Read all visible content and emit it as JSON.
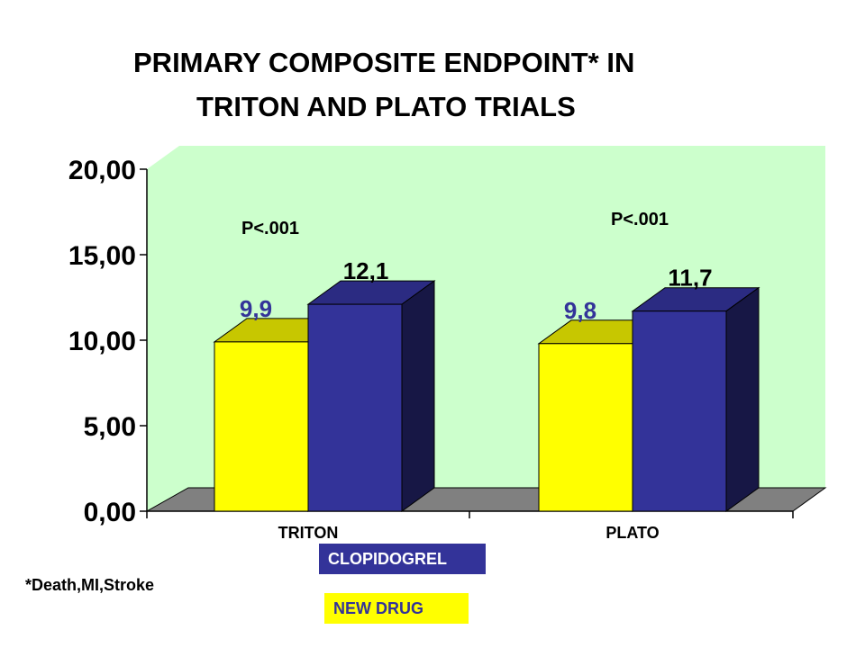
{
  "title_lines": [
    "PRIMARY COMPOSITE ENDPOINT* IN",
    "TRITON AND PLATO TRIALS"
  ],
  "footnote": "*Death,MI,Stroke",
  "legend": {
    "clopidogrel": "CLOPIDOGREL",
    "new_drug": "NEW DRUG"
  },
  "colors": {
    "plot_bg": "#ccffcc",
    "new_drug": "#ffff00",
    "clopidogrel": "#333399",
    "floor": "#808080"
  },
  "chart_data": {
    "type": "bar",
    "categories": [
      "TRITON",
      "PLATO"
    ],
    "series": [
      {
        "name": "NEW DRUG",
        "values": [
          9.9,
          9.8
        ],
        "labels": [
          "9,9",
          "9,8"
        ]
      },
      {
        "name": "CLOPIDOGREL",
        "values": [
          12.1,
          11.7
        ],
        "labels": [
          "12,1",
          "11,7"
        ]
      }
    ],
    "yticks": [
      "0,00",
      "5,00",
      "10,00",
      "15,00",
      "20,00"
    ],
    "ylim": [
      0,
      20
    ],
    "annotations": [
      "P<.001",
      "P<.001"
    ],
    "three_d": true,
    "legend_position": "bottom"
  }
}
